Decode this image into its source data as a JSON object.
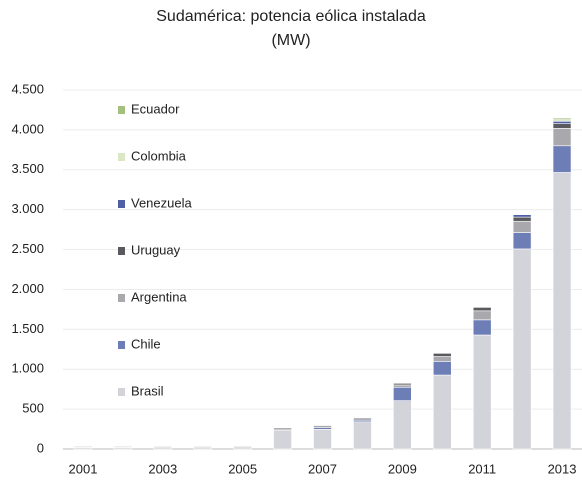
{
  "chart_data": {
    "type": "stacked_bar",
    "title": "Sudamérica: potencia eólica instalada",
    "subtitle": "(MW)",
    "categories": [
      "2001",
      null,
      "2003",
      null,
      "2005",
      null,
      "2007",
      null,
      "2009",
      null,
      "2011",
      null,
      "2013"
    ],
    "series": [
      {
        "name": "Brasil",
        "color": "#d3d4da",
        "values": [
          20,
          20,
          25,
          25,
          27,
          237,
          247,
          341,
          606,
          927,
          1429,
          2508,
          3466
        ]
      },
      {
        "name": "Chile",
        "color": "#6d7db5",
        "values": [
          2,
          2,
          2,
          2,
          2,
          2,
          20,
          20,
          168,
          172,
          190,
          205,
          335
        ]
      },
      {
        "name": "Argentina",
        "color": "#a9a9ad",
        "values": [
          10,
          10,
          10,
          10,
          10,
          27,
          27,
          29,
          29,
          60,
          113,
          142,
          218
        ]
      },
      {
        "name": "Uruguay",
        "color": "#5a5a5e",
        "values": [
          0,
          0,
          0,
          0,
          0,
          0,
          0,
          0,
          20,
          40,
          43,
          52,
          59
        ]
      },
      {
        "name": "Venezuela",
        "color": "#4f5fa5",
        "values": [
          0,
          0,
          0,
          0,
          0,
          0,
          0,
          0,
          0,
          0,
          0,
          30,
          30
        ]
      },
      {
        "name": "Colombia",
        "color": "#dbe8c6",
        "values": [
          0,
          0,
          0,
          0,
          0,
          0,
          0,
          0,
          0,
          0,
          0,
          0,
          20
        ]
      },
      {
        "name": "Ecuador",
        "color": "#a6bf80",
        "values": [
          0,
          0,
          0,
          0,
          0,
          0,
          0,
          0,
          0,
          0,
          0,
          0,
          20
        ]
      }
    ],
    "ylim": [
      0,
      4500
    ],
    "yticks": [
      0,
      500,
      {
        "value": 1000,
        "label": "1.000"
      },
      {
        "value": 1500,
        "label": "1.500"
      },
      {
        "value": 2000,
        "label": "2.000"
      },
      {
        "value": 2500,
        "label": "2.500"
      },
      {
        "value": 3000,
        "label": "3.000"
      },
      {
        "value": 3500,
        "label": "3.500"
      },
      {
        "value": 4000,
        "label": "4.000"
      },
      {
        "value": 4500,
        "label": "4.500"
      }
    ],
    "grid": true
  }
}
